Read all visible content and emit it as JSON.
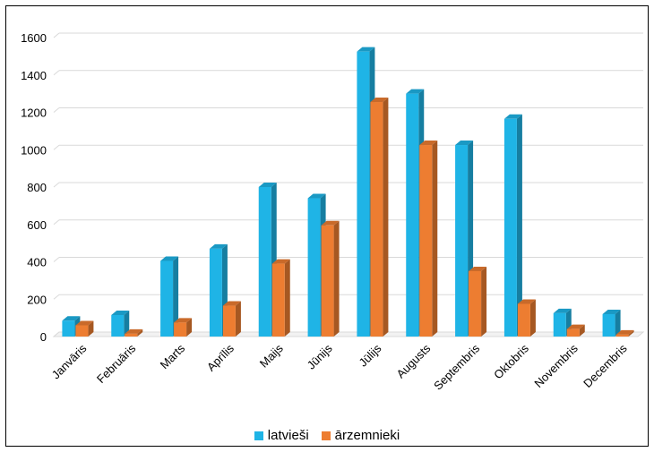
{
  "chart_data": {
    "type": "bar",
    "categories": [
      "Janvāris",
      "Februāris",
      "Marts",
      "Aprīlis",
      "Maijs",
      "Jūnijs",
      "Jūlijs",
      "Augusts",
      "Septembris",
      "Oktobris",
      "Novembris",
      "Decembris"
    ],
    "series": [
      {
        "name": "latvieši",
        "color": "#1fb4e6",
        "values": [
          85,
          115,
          405,
          470,
          800,
          740,
          1525,
          1300,
          1025,
          1165,
          125,
          120
        ]
      },
      {
        "name": "ārzemnieki",
        "color": "#ed7d31",
        "values": [
          60,
          15,
          75,
          165,
          390,
          595,
          1255,
          1025,
          350,
          175,
          40,
          10
        ]
      }
    ],
    "ylim": [
      0,
      1600
    ],
    "yticks": [
      0,
      200,
      400,
      600,
      800,
      1000,
      1200,
      1400,
      1600
    ],
    "grid": true,
    "legend_position": "bottom"
  }
}
